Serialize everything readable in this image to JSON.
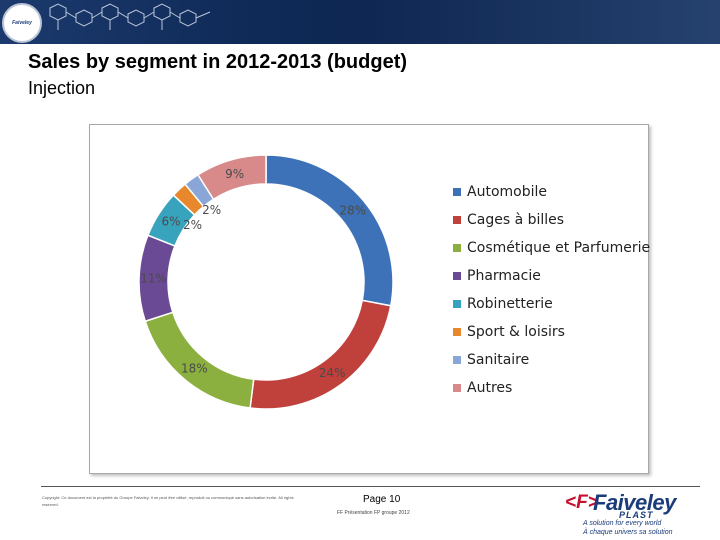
{
  "banner": {
    "logo_text": "Faiveley"
  },
  "header": {
    "title": "Sales by segment in 2012-2013 (budget)",
    "subtitle": "Injection"
  },
  "chart_data": {
    "type": "pie",
    "donut": true,
    "title": "",
    "legend_position": "right",
    "categories": [
      "Automobile",
      "Cages à billes",
      "Cosmétique et Parfumerie",
      "Pharmacie",
      "Robinetterie",
      "Sport & loisirs",
      "Sanitaire",
      "Autres"
    ],
    "values": [
      28,
      24,
      18,
      11,
      6,
      2,
      2,
      9
    ],
    "data_labels": [
      "28%",
      "24%",
      "18%",
      "11%",
      "6%",
      "2%",
      "2%",
      "9%"
    ],
    "colors": [
      "#3d72b8",
      "#c0403c",
      "#8bb040",
      "#6a4a94",
      "#38a3bd",
      "#e8882c",
      "#8aa6d6",
      "#d88a8a"
    ]
  },
  "footer": {
    "disclaimer": "Copyright: Ce document est la propriété du Groupe Faiveley. Il ne peut être utilisé, reproduit ou communiqué sans autorisation écrite. All rights reserved.",
    "page_label": "Page 10",
    "page_sub": "FF Présentation FP groupe 2012",
    "brand_mark": "<F>",
    "brand_name": "Faiveley",
    "brand_sub": "PLAST",
    "tagline_1": "A solution for every world",
    "tagline_2": "À chaque univers sa solution"
  }
}
